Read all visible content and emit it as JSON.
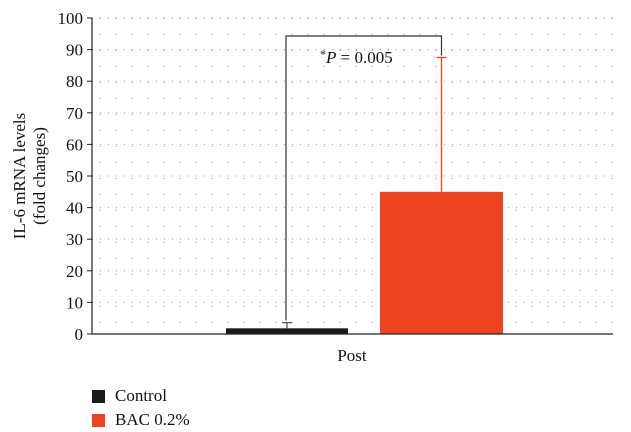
{
  "chart_data": {
    "type": "bar",
    "categories": [
      "Post"
    ],
    "series": [
      {
        "name": "Control",
        "values": [
          1.8
        ],
        "error_plus": [
          1.8
        ],
        "color": "#1a1a1a"
      },
      {
        "name": "BAC 0.2%",
        "values": [
          45
        ],
        "error_plus": [
          42.5
        ],
        "color": "#ef4423"
      }
    ],
    "ylim": [
      0,
      100
    ],
    "yticks": [
      0,
      10,
      20,
      30,
      40,
      50,
      60,
      70,
      80,
      90,
      100
    ],
    "ylabel_line1": "IL-6 mRNA levels",
    "ylabel_line2": "(fold changes)",
    "xlabel": "",
    "grid": true,
    "legend_position": "bottom-left",
    "annotation": {
      "star": "*",
      "p_symbol": "P",
      "rest": " = 0.005"
    },
    "error_bar_colors": [
      "#555555",
      "#ef4423"
    ]
  }
}
